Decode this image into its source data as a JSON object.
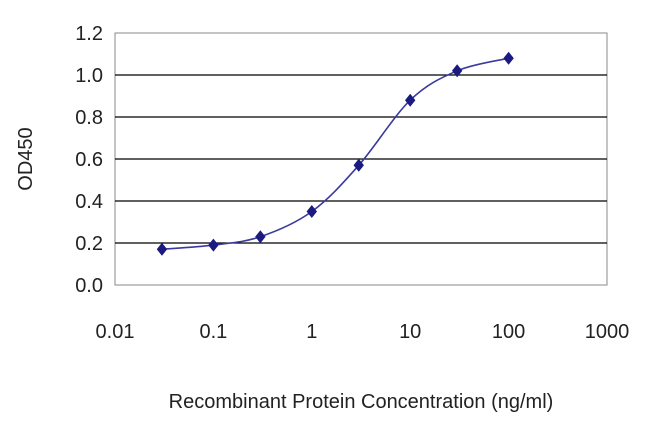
{
  "chart_data": {
    "type": "scatter",
    "title": "",
    "xlabel": "Recombinant Protein Concentration (ng/ml)",
    "ylabel": "OD450",
    "x_scale": "log",
    "xlim": [
      0.01,
      1000
    ],
    "ylim": [
      0.0,
      1.2
    ],
    "x_ticks": [
      "0.01",
      "0.1",
      "1",
      "10",
      "100",
      "1000"
    ],
    "x_tick_values": [
      0.01,
      0.1,
      1,
      10,
      100,
      1000
    ],
    "y_ticks": [
      "0.0",
      "0.2",
      "0.4",
      "0.6",
      "0.8",
      "1.0",
      "1.2"
    ],
    "y_tick_values": [
      0.0,
      0.2,
      0.4,
      0.6,
      0.8,
      1.0,
      1.2
    ],
    "grid": "horizontal",
    "legend": "none",
    "fitted_curve": true,
    "series": [
      {
        "x": [
          0.03,
          0.1,
          0.3,
          1,
          3,
          10,
          30,
          100
        ],
        "y": [
          0.17,
          0.19,
          0.23,
          0.35,
          0.57,
          0.88,
          1.02,
          1.08
        ]
      }
    ],
    "colors": {
      "marker": "#1a1a80",
      "curve": "#3a3aa0",
      "gridline": "#000000",
      "plot_border": "#888888",
      "plot_background": "#ffffff"
    }
  }
}
